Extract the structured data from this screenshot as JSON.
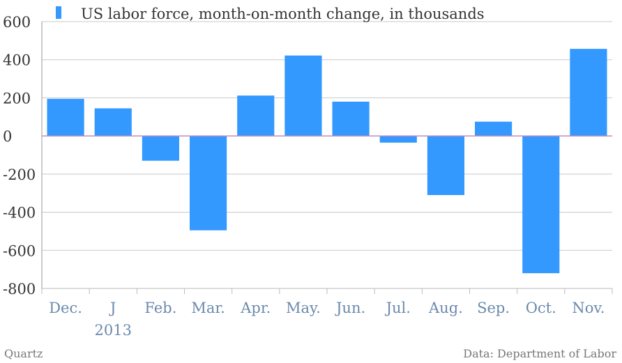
{
  "chart_data": {
    "type": "bar",
    "title": "",
    "legend": {
      "label": "US labor force, month-on-month change, in thousands",
      "placement": "top-left"
    },
    "categories": [
      "Dec.",
      "J",
      "Feb.",
      "Mar.",
      "Apr.",
      "May.",
      "Jun.",
      "Jul.",
      "Aug.",
      "Sep.",
      "Oct.",
      "Nov."
    ],
    "year_label": "2013",
    "values": [
      195,
      145,
      -130,
      -495,
      212,
      422,
      180,
      -35,
      -310,
      75,
      -720,
      457
    ],
    "ylim": [
      -800,
      600
    ],
    "yticks": [
      600,
      400,
      200,
      0,
      -200,
      -400,
      -600,
      -800
    ],
    "ytick_labels": [
      "600",
      "400",
      "200",
      "0",
      "-200",
      "-400",
      "-600",
      "-800"
    ],
    "grid": true,
    "colors": {
      "bar": "#3399ff",
      "grid": "#c8c8c8",
      "zero_line": "#c08bbf",
      "text_axis": "#333333",
      "text_category": "#6b89ad",
      "text_footer": "#777777"
    }
  },
  "footer": {
    "source_left": "Quartz",
    "source_right": "Data: Department of Labor"
  }
}
